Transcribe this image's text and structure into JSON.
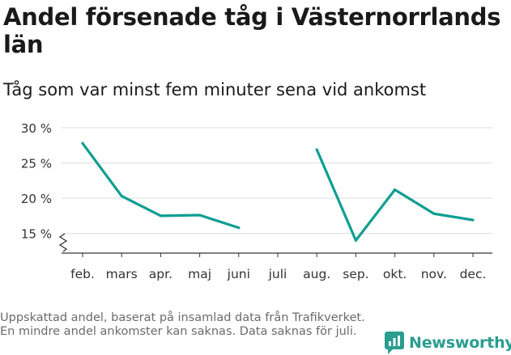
{
  "title": "Andel försenade tåg i Västernorrlands län",
  "subtitle": "Tåg som var minst fem minuter sena vid ankomst",
  "footnote": "Uppskattad andel, baserat på insamlad data från Trafikverket. En mindre andel ankomster kan saknas. Data saknas för juli.",
  "brand": {
    "name": "Newsworthy",
    "color": "#2a9d8f"
  },
  "chart_data": {
    "type": "line",
    "title": "Andel försenade tåg i Västernorrlands län",
    "subtitle": "Tåg som var minst fem minuter sena vid ankomst",
    "xlabel": "",
    "ylabel": "",
    "categories": [
      "feb.",
      "mars",
      "apr.",
      "maj",
      "juni",
      "juli",
      "aug.",
      "sep.",
      "okt.",
      "nov.",
      "dec."
    ],
    "series": [
      {
        "color": "#0f9e92",
        "values": [
          27.8,
          20.3,
          17.5,
          17.6,
          15.8,
          null,
          26.9,
          14.0,
          21.2,
          17.8,
          16.9
        ]
      }
    ],
    "y_ticks": [
      15,
      20,
      25,
      30
    ],
    "y_tick_labels": [
      "15 %",
      "20 %",
      "25 %",
      "30 %"
    ],
    "ylim": [
      12.2,
      30
    ],
    "y_axis_break": true,
    "grid": true
  }
}
